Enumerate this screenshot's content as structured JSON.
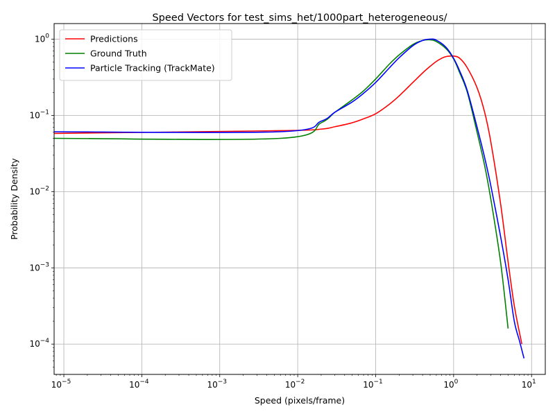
{
  "chart_data": {
    "type": "line",
    "title": "Speed Vectors for test_sims_het/1000part_heterogeneous/",
    "xlabel": "Speed (pixels/frame)",
    "ylabel": "Probability Density",
    "xscale": "log",
    "yscale": "log",
    "xlim": [
      7.5e-06,
      15
    ],
    "ylim": [
      4e-05,
      1.6
    ],
    "grid": true,
    "legend_position": "top-left",
    "x_ticks": [
      {
        "value": 1e-05,
        "base": "10",
        "exp": "−5"
      },
      {
        "value": 0.0001,
        "base": "10",
        "exp": "−4"
      },
      {
        "value": 0.001,
        "base": "10",
        "exp": "−3"
      },
      {
        "value": 0.01,
        "base": "10",
        "exp": "−2"
      },
      {
        "value": 0.1,
        "base": "10",
        "exp": "−1"
      },
      {
        "value": 1,
        "base": "10",
        "exp": "0"
      },
      {
        "value": 10,
        "base": "10",
        "exp": "1"
      }
    ],
    "y_ticks": [
      {
        "value": 0.0001,
        "base": "10",
        "exp": "−4"
      },
      {
        "value": 0.001,
        "base": "10",
        "exp": "−3"
      },
      {
        "value": 0.01,
        "base": "10",
        "exp": "−2"
      },
      {
        "value": 0.1,
        "base": "10",
        "exp": "−1"
      },
      {
        "value": 1,
        "base": "10",
        "exp": "0"
      }
    ],
    "series": [
      {
        "name": "Predictions",
        "color": "#ff0000",
        "x": [
          7.5e-06,
          0.006,
          0.02,
          0.03,
          0.05,
          0.07,
          0.1,
          0.15,
          0.2,
          0.3,
          0.4,
          0.5,
          0.6,
          0.7,
          0.8,
          1.0,
          1.2,
          1.5,
          2.0,
          2.5,
          3.0,
          4.0,
          5.0,
          6.0,
          7.5
        ],
        "y": [
          0.058,
          0.063,
          0.066,
          0.071,
          0.08,
          0.09,
          0.105,
          0.14,
          0.18,
          0.27,
          0.36,
          0.44,
          0.51,
          0.56,
          0.59,
          0.6,
          0.56,
          0.42,
          0.23,
          0.11,
          0.045,
          0.007,
          0.0012,
          0.00032,
          0.0001
        ]
      },
      {
        "name": "Ground Truth",
        "color": "#008000",
        "x": [
          7.5e-06,
          0.006,
          0.02,
          0.03,
          0.05,
          0.07,
          0.1,
          0.15,
          0.2,
          0.3,
          0.4,
          0.5,
          0.6,
          0.8,
          1.0,
          1.2,
          1.5,
          2.0,
          2.5,
          3.0,
          4.0,
          5.0
        ],
        "y": [
          0.05,
          0.05,
          0.08,
          0.11,
          0.16,
          0.21,
          0.3,
          0.47,
          0.62,
          0.85,
          0.96,
          0.98,
          0.93,
          0.75,
          0.55,
          0.36,
          0.2,
          0.06,
          0.022,
          0.008,
          0.0012,
          0.00016
        ]
      },
      {
        "name": "Particle Tracking (TrackMate)",
        "color": "#0000ff",
        "x": [
          7.5e-06,
          0.006,
          0.02,
          0.03,
          0.05,
          0.07,
          0.1,
          0.15,
          0.2,
          0.3,
          0.4,
          0.5,
          0.6,
          0.8,
          1.0,
          1.2,
          1.5,
          2.0,
          2.5,
          3.0,
          4.0,
          5.0,
          6.0,
          7.0,
          8.0
        ],
        "y": [
          0.061,
          0.061,
          0.084,
          0.11,
          0.15,
          0.195,
          0.27,
          0.42,
          0.57,
          0.82,
          0.96,
          1.0,
          0.97,
          0.78,
          0.56,
          0.38,
          0.21,
          0.07,
          0.028,
          0.012,
          0.0026,
          0.0007,
          0.0002,
          0.00011,
          6.5e-05
        ]
      }
    ]
  }
}
